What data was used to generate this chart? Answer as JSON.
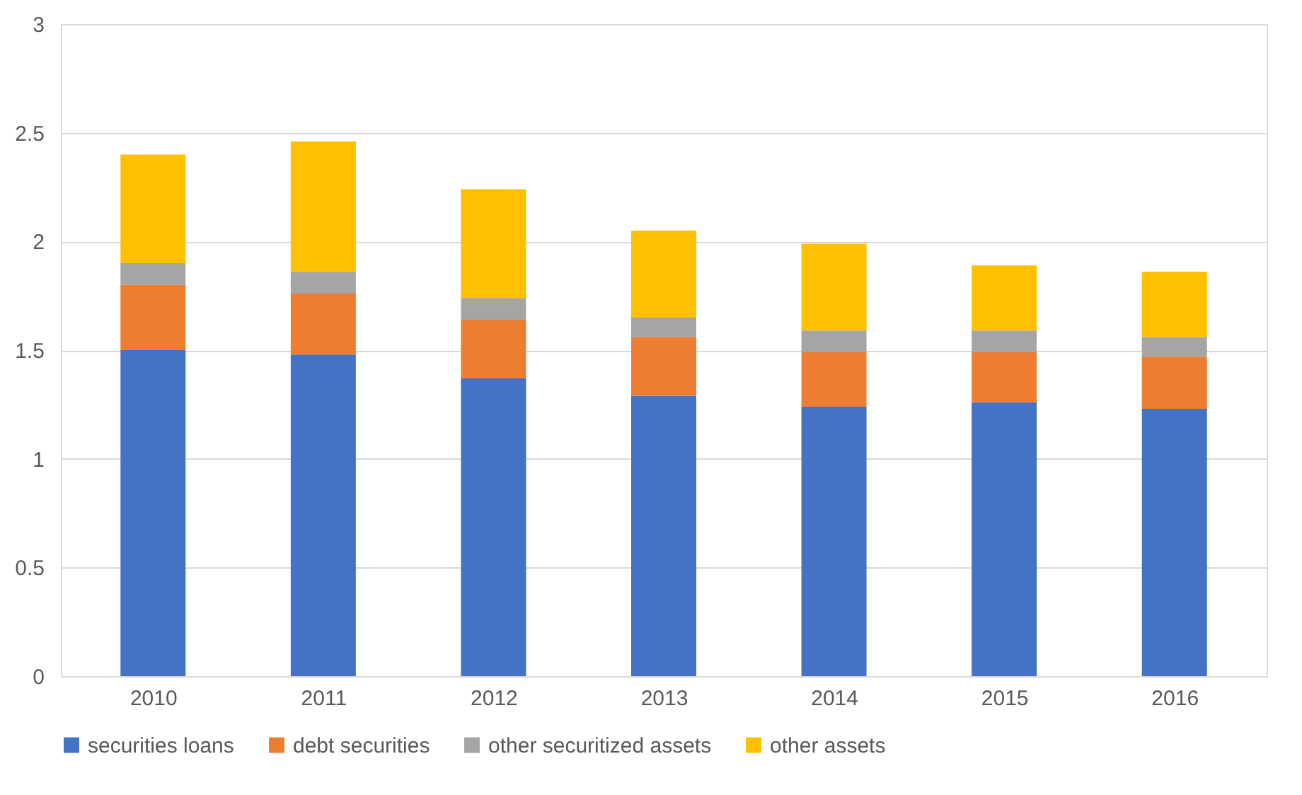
{
  "chart_data": {
    "type": "bar",
    "stacked": true,
    "categories": [
      "2010",
      "2011",
      "2012",
      "2013",
      "2014",
      "2015",
      "2016"
    ],
    "series": [
      {
        "name": "securities loans",
        "color": "#4472c4",
        "values": [
          1.5,
          1.48,
          1.37,
          1.29,
          1.24,
          1.26,
          1.23
        ]
      },
      {
        "name": "debt securities",
        "color": "#ed7d31",
        "values": [
          0.3,
          0.28,
          0.27,
          0.27,
          0.25,
          0.23,
          0.24
        ]
      },
      {
        "name": "other securitized assets",
        "color": "#a5a5a5",
        "values": [
          0.1,
          0.1,
          0.1,
          0.09,
          0.1,
          0.1,
          0.09
        ]
      },
      {
        "name": "other assets",
        "color": "#ffc000",
        "values": [
          0.5,
          0.6,
          0.5,
          0.4,
          0.4,
          0.3,
          0.3
        ]
      }
    ],
    "ylim": [
      0,
      3
    ],
    "yticks": [
      0,
      0.5,
      1,
      1.5,
      2,
      2.5,
      3
    ],
    "grid": "y",
    "legend": "bottom"
  }
}
